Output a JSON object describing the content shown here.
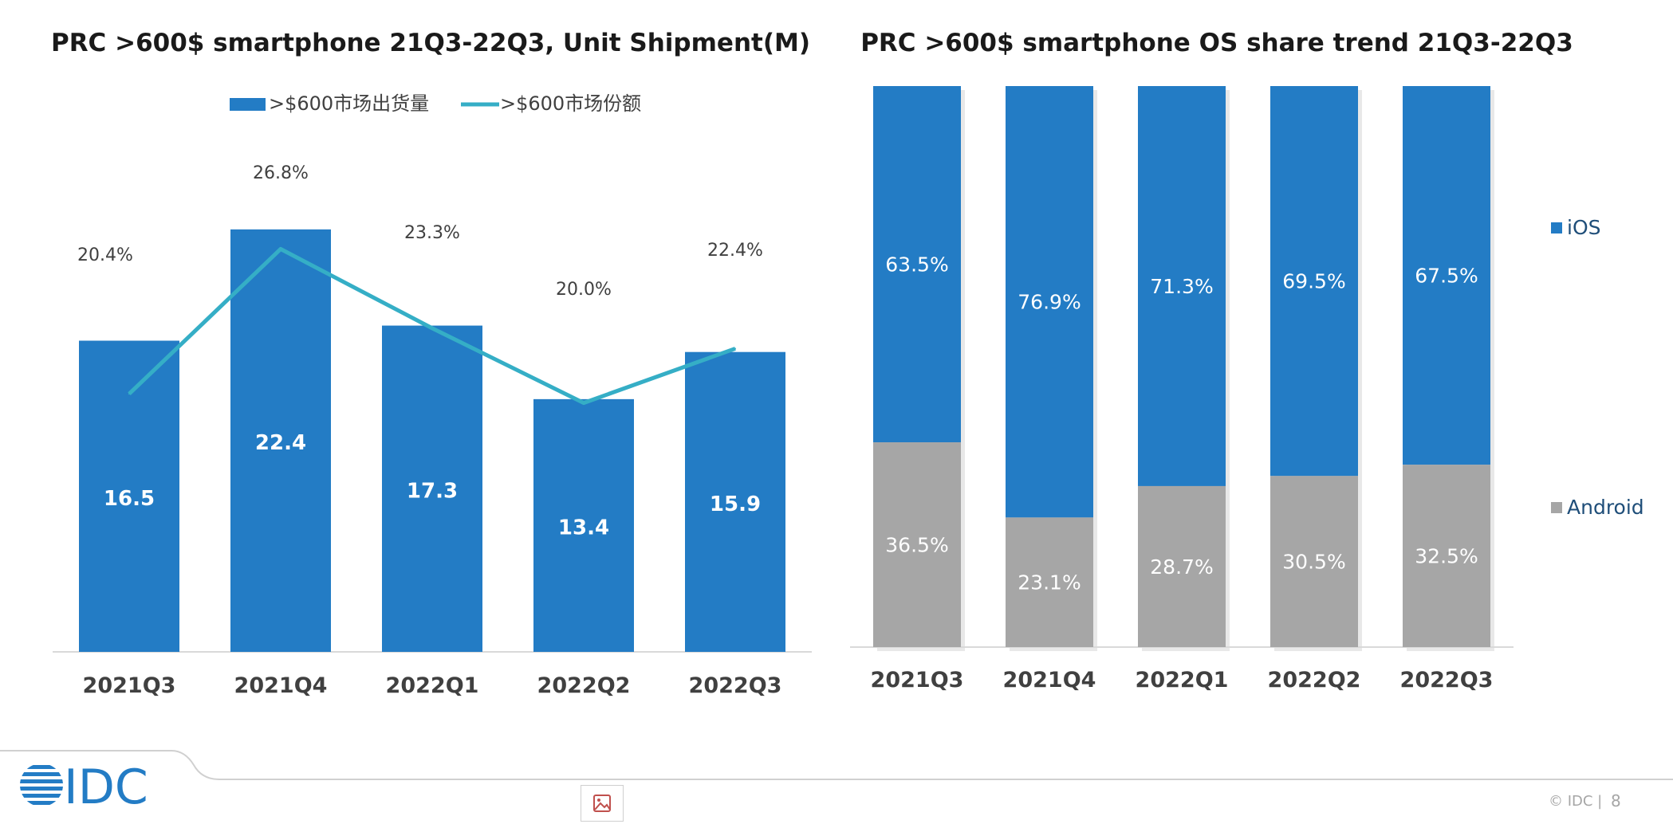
{
  "left_chart": {
    "title": "PRC >600$ smartphone 21Q3-22Q3, Unit Shipment(M)",
    "legend": [
      {
        "label": ">$600市场出货量",
        "kind": "bar"
      },
      {
        "label": ">$600市场份额",
        "kind": "line"
      }
    ]
  },
  "right_chart": {
    "title": "PRC >600$ smartphone OS share trend 21Q3-22Q3",
    "legend": [
      {
        "label": "iOS"
      },
      {
        "label": "Android"
      }
    ]
  },
  "chart_data": [
    {
      "type": "bar",
      "title": "PRC >600$ smartphone 21Q3-22Q3, Unit Shipment(M)",
      "categories": [
        "2021Q3",
        "2021Q4",
        "2022Q1",
        "2022Q2",
        "2022Q3"
      ],
      "series": [
        {
          "name": ">$600市场出货量",
          "type": "bar",
          "values": [
            16.5,
            22.4,
            17.3,
            13.4,
            15.9
          ],
          "labels": [
            "16.5",
            "22.4",
            "17.3",
            "13.4",
            "15.9"
          ],
          "color": "#237cc5"
        },
        {
          "name": ">$600市场份额",
          "type": "line",
          "values": [
            20.4,
            26.8,
            23.3,
            20.0,
            22.4
          ],
          "labels": [
            "20.4%",
            "26.8%",
            "23.3%",
            "20.0%",
            "22.4%"
          ],
          "color": "#35aec6"
        }
      ],
      "ylim": [
        0,
        24
      ],
      "line_ylim": [
        9.0,
        29.0
      ],
      "grid": false,
      "legend_position": "top"
    },
    {
      "type": "bar",
      "stacked": true,
      "title": "PRC >600$ smartphone OS share trend 21Q3-22Q3",
      "categories": [
        "2021Q3",
        "2021Q4",
        "2022Q1",
        "2022Q2",
        "2022Q3"
      ],
      "series": [
        {
          "name": "iOS",
          "values": [
            63.5,
            76.9,
            71.3,
            69.5,
            67.5
          ],
          "labels": [
            "63.5%",
            "76.9%",
            "71.3%",
            "69.5%",
            "67.5%"
          ],
          "color": "#237cc5"
        },
        {
          "name": "Android",
          "values": [
            36.5,
            23.1,
            28.7,
            30.5,
            32.5
          ],
          "labels": [
            "36.5%",
            "23.1%",
            "28.7%",
            "30.5%",
            "32.5%"
          ],
          "color": "#a6a6a6"
        }
      ],
      "ylim": [
        0,
        100
      ],
      "grid": false,
      "legend_position": "right"
    }
  ],
  "footer": {
    "logo_text": "IDC",
    "copyright": "© IDC |",
    "page_number": "8"
  }
}
